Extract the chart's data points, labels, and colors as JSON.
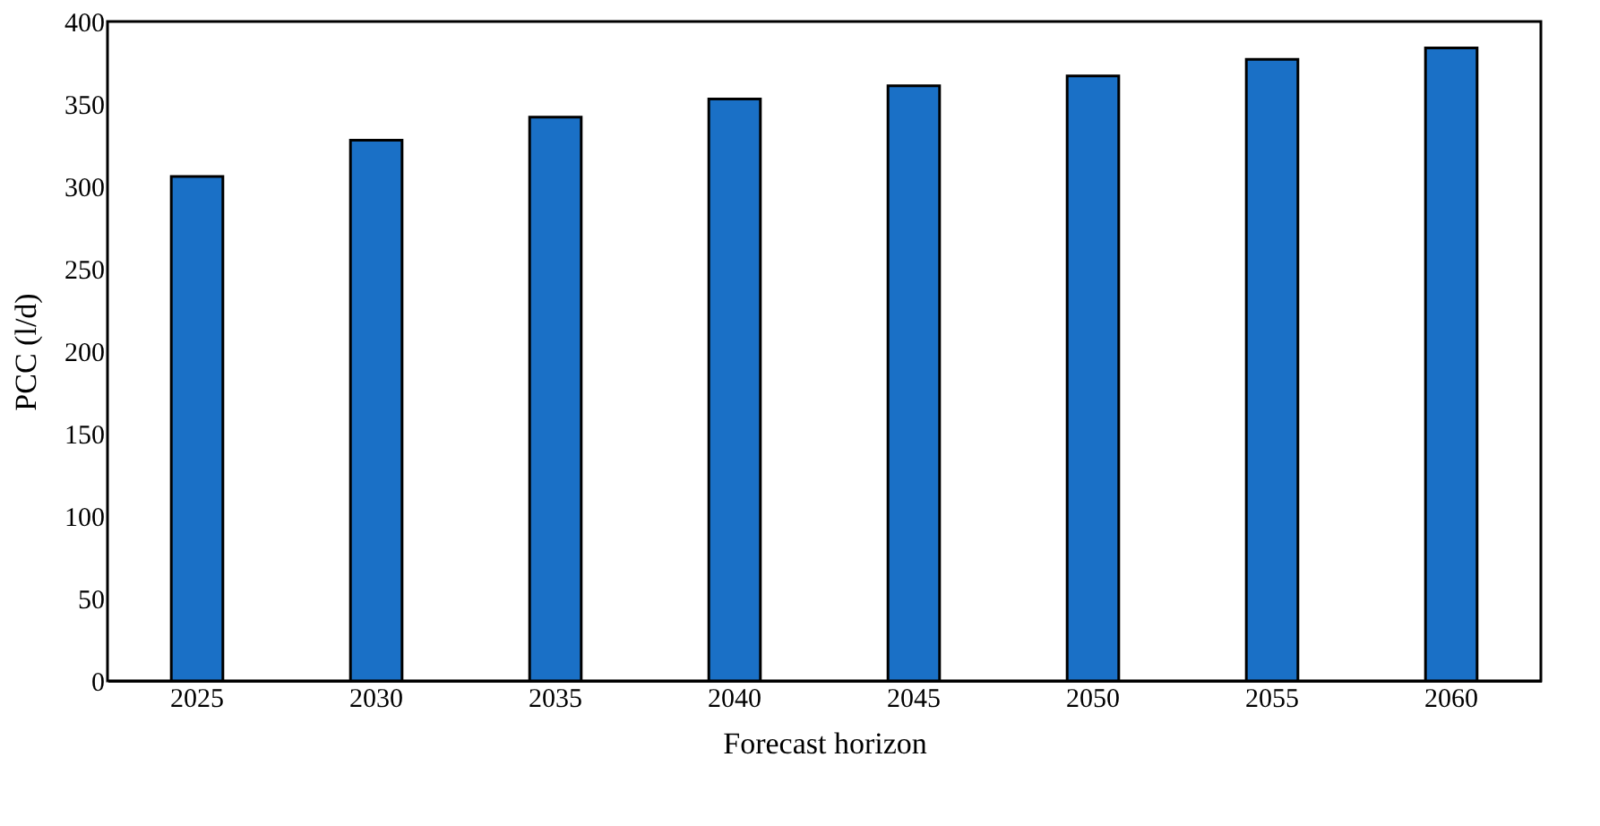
{
  "chart_data": {
    "type": "bar",
    "xlabel": "Forecast horizon",
    "ylabel": "PCC (l/d)",
    "categories": [
      "2025",
      "2030",
      "2035",
      "2040",
      "2045",
      "2050",
      "2055",
      "2060"
    ],
    "values": [
      306,
      328,
      342,
      353,
      361,
      367,
      377,
      384
    ],
    "color": "#1a70c6",
    "ylim": [
      0,
      400
    ],
    "yticks": [
      0,
      50,
      100,
      150,
      200,
      250,
      300,
      350,
      400
    ],
    "grid": false
  }
}
